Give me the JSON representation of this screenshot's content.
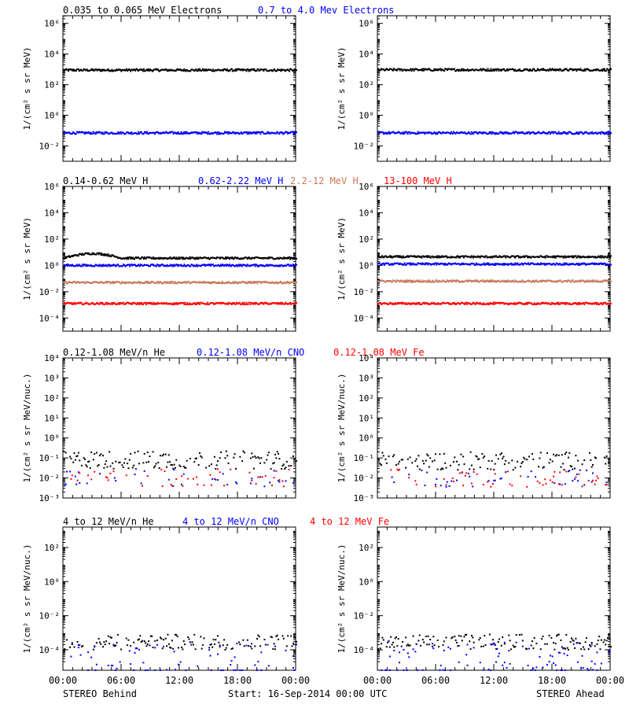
{
  "footer": {
    "left": "STEREO Behind",
    "center": "Start: 16-Sep-2014 00:00 UTC",
    "right": "STEREO Ahead"
  },
  "x_ticks": [
    "00:00",
    "06:00",
    "12:00",
    "18:00",
    "00:00"
  ],
  "chart_data": [
    {
      "type": "scatter",
      "panel": "electrons",
      "side_titles": [
        {
          "text": "0.035 to 0.065 MeV Electrons",
          "color": "#000000"
        },
        {
          "text": "0.7 to 4.0 Mev Electrons",
          "color": "#0000ff"
        }
      ],
      "ylabel": "1/(cm² s sr MeV)",
      "log_y": true,
      "ylim_exp": [
        -3,
        6.5
      ],
      "y_tick_exps": [
        -2,
        0,
        2,
        4,
        6
      ],
      "x_hours": [
        0,
        24
      ],
      "series": [
        {
          "color": "#000000",
          "behind_exp": 2.95,
          "ahead_exp": 2.97
        },
        {
          "color": "#0000ff",
          "behind_exp": -1.15,
          "ahead_exp": -1.15
        }
      ]
    },
    {
      "type": "scatter",
      "panel": "protons",
      "side_titles": [
        {
          "text": "0.14-0.62 MeV H",
          "color": "#000000"
        },
        {
          "text": "0.62-2.22 MeV H",
          "color": "#0000ff"
        },
        {
          "text": "2.2-12 MeV H",
          "color": "#c87a5a"
        },
        {
          "text": "13-100 MeV H",
          "color": "#ff0000"
        }
      ],
      "ylabel": "1/(cm² s sr MeV)",
      "log_y": true,
      "ylim_exp": [
        -5,
        6
      ],
      "y_tick_exps": [
        -4,
        -2,
        0,
        2,
        4,
        6
      ],
      "x_hours": [
        0,
        24
      ],
      "series": [
        {
          "color": "#000000",
          "behind_exp": 0.55,
          "ahead_exp": 0.65
        },
        {
          "color": "#0000ff",
          "behind_exp": 0.0,
          "ahead_exp": 0.1
        },
        {
          "color": "#c87a5a",
          "behind_exp": -1.3,
          "ahead_exp": -1.2
        },
        {
          "color": "#ff0000",
          "behind_exp": -2.9,
          "ahead_exp": -2.9
        }
      ]
    },
    {
      "type": "scatter",
      "panel": "heavy_ions_low",
      "side_titles": [
        {
          "text": "0.12-1.08 MeV/n He",
          "color": "#000000"
        },
        {
          "text": "0.12-1.08 MeV/n CNO",
          "color": "#0000ff"
        },
        {
          "text": "0.12-1.08 MeV Fe",
          "color": "#ff0000"
        }
      ],
      "ylabel": "1/(cm² s sr MeV/nuc.)",
      "log_y": true,
      "ylim_exp": [
        -3,
        4
      ],
      "y_tick_exps": [
        -3,
        -2,
        -1,
        0,
        1,
        2,
        3,
        4
      ],
      "x_hours": [
        0,
        24
      ],
      "series": [
        {
          "color": "#000000",
          "behind_exp": -1.1,
          "ahead_exp": -1.15
        },
        {
          "color": "#0000ff",
          "behind_exp": -2.0,
          "ahead_exp": -2.0
        },
        {
          "color": "#ff0000",
          "behind_exp": -2.0,
          "ahead_exp": -2.0
        }
      ]
    },
    {
      "type": "scatter",
      "panel": "heavy_ions_high",
      "side_titles": [
        {
          "text": "4 to 12 MeV/n He",
          "color": "#000000"
        },
        {
          "text": "4 to 12 MeV/n CNO",
          "color": "#0000ff"
        },
        {
          "text": "4 to 12 MeV Fe",
          "color": "#ff0000"
        }
      ],
      "ylabel": "1/(cm² s sr MeV/nuc.)",
      "log_y": true,
      "ylim_exp": [
        -5.2,
        3.2
      ],
      "y_tick_exps": [
        -4,
        -2,
        0,
        2
      ],
      "x_hours": [
        0,
        24
      ],
      "series": [
        {
          "color": "#000000",
          "behind_exp": -3.55,
          "ahead_exp": -3.55
        },
        {
          "color": "#0000ff",
          "behind_exp": -4.0,
          "ahead_exp": -4.0
        },
        {
          "color": "#0000ff",
          "behind_exp": -5.1,
          "ahead_exp": -5.1
        }
      ]
    }
  ]
}
